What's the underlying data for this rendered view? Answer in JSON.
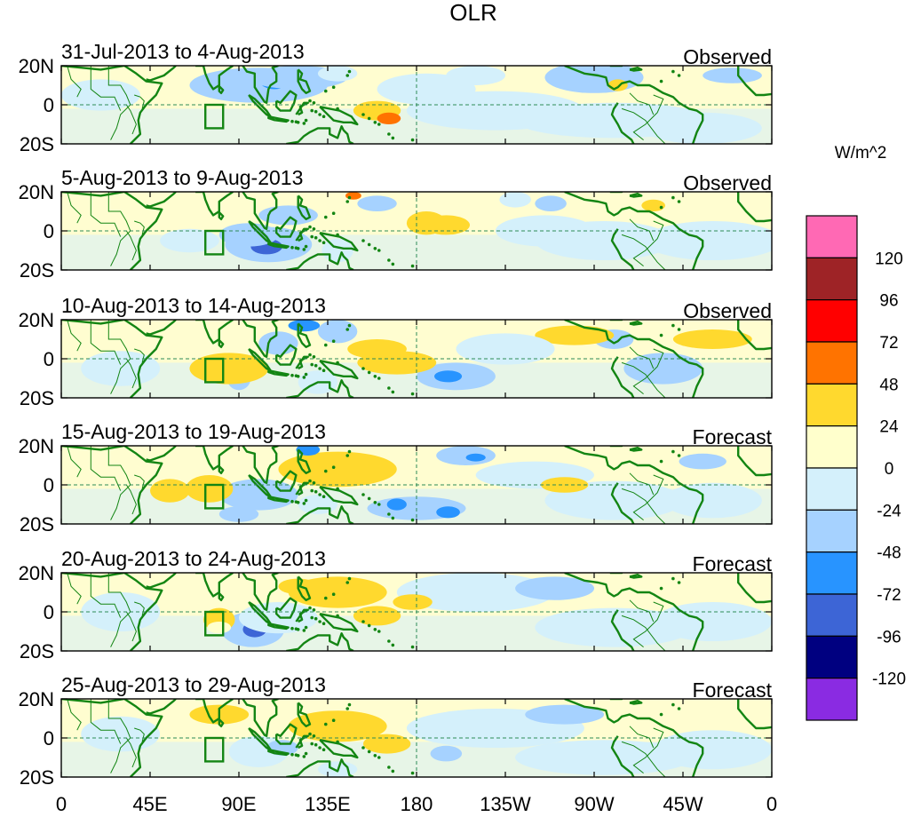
{
  "title": "OLR",
  "units": "W/m^2",
  "lat_labels": [
    "20N",
    "0",
    "20S"
  ],
  "lon_labels": [
    "0",
    "45E",
    "90E",
    "135E",
    "180",
    "135W",
    "90W",
    "45W",
    "0"
  ],
  "panels": [
    {
      "period": "31-Jul-2013 to 4-Aug-2013",
      "kind": "Observed"
    },
    {
      "period": "5-Aug-2013 to 9-Aug-2013",
      "kind": "Observed"
    },
    {
      "period": "10-Aug-2013 to 14-Aug-2013",
      "kind": "Observed"
    },
    {
      "period": "15-Aug-2013 to 19-Aug-2013",
      "kind": "Forecast"
    },
    {
      "period": "20-Aug-2013 to 24-Aug-2013",
      "kind": "Forecast"
    },
    {
      "period": "25-Aug-2013 to 29-Aug-2013",
      "kind": "Forecast"
    }
  ],
  "colorbar": {
    "labels": [
      "120",
      "96",
      "72",
      "48",
      "24",
      "0",
      "-24",
      "-48",
      "-72",
      "-96",
      "-120"
    ],
    "colors": [
      "#ff69b4",
      "#9e2326",
      "#ff0000",
      "#ff7300",
      "#ffd92e",
      "#ffffcc",
      "#d4f0fb",
      "#a6d2ff",
      "#2894ff",
      "#3d65d6",
      "#000080",
      "#8a2be2"
    ]
  },
  "colors": {
    "coast": "#138513",
    "grid": "#2e8b57",
    "ocean_base": "#fffdd0",
    "land_interior": "#d4eefa"
  }
}
